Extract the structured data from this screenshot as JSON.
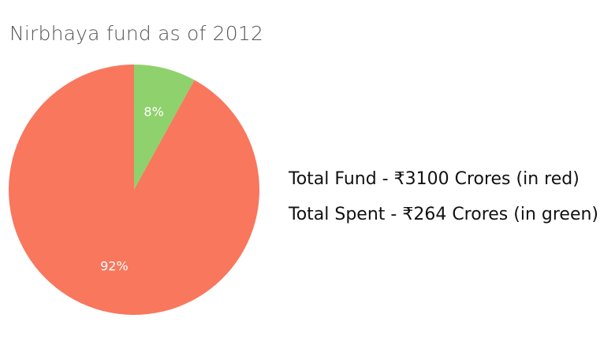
{
  "chart_data": {
    "type": "pie",
    "title": "Nirbhaya fund as of 2012",
    "slices": [
      {
        "label": "8%",
        "value": 8,
        "color": "#8fd16c"
      },
      {
        "label": "92%",
        "value": 92,
        "color": "#f8775d"
      }
    ],
    "annotations": [
      "Total Fund - ₹3100 Crores (in red)",
      "Total Spent - ₹264 Crores (in green)"
    ]
  }
}
